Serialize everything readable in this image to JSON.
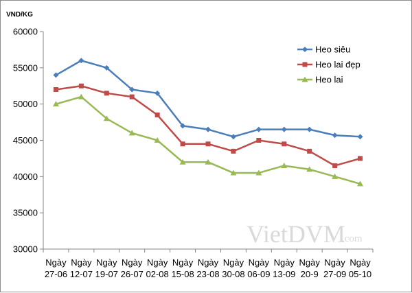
{
  "chart_data": {
    "type": "line",
    "ylabel": "VND/KG",
    "ylim": [
      30000,
      60000
    ],
    "ytick_step": 5000,
    "grid": false,
    "legend_position": "top-right",
    "categories": [
      [
        "Ngày",
        "27-06"
      ],
      [
        "Ngày",
        "12-07"
      ],
      [
        "Ngày",
        "19-07"
      ],
      [
        "Ngày",
        "26-07"
      ],
      [
        "Ngày",
        "02-08"
      ],
      [
        "Ngày",
        "15-08"
      ],
      [
        "Ngày",
        "23-08"
      ],
      [
        "Ngày",
        "30-08"
      ],
      [
        "Ngày",
        "06-09"
      ],
      [
        "Ngày",
        "13-09"
      ],
      [
        "Ngày",
        "20-9"
      ],
      [
        "Ngày",
        "27-09"
      ],
      [
        "Ngày",
        "05-10"
      ]
    ],
    "series": [
      {
        "name": "Heo siêu",
        "color": "#4a7ebb",
        "marker": "diamond",
        "values": [
          54000,
          56000,
          55000,
          52000,
          51500,
          47000,
          46500,
          45500,
          46500,
          46500,
          46500,
          45700,
          45500
        ]
      },
      {
        "name": "Heo lai đẹp",
        "color": "#be4b48",
        "marker": "square",
        "values": [
          52000,
          52500,
          51500,
          51000,
          48500,
          44500,
          44500,
          43500,
          45000,
          44500,
          43500,
          41500,
          42500
        ]
      },
      {
        "name": "Heo lai",
        "color": "#98b954",
        "marker": "triangle",
        "values": [
          50000,
          51000,
          48000,
          46000,
          45000,
          42000,
          42000,
          40500,
          40500,
          41500,
          41000,
          40000,
          39000
        ]
      }
    ]
  },
  "watermark": {
    "main": "VietDVM",
    "suffix": ".com"
  }
}
